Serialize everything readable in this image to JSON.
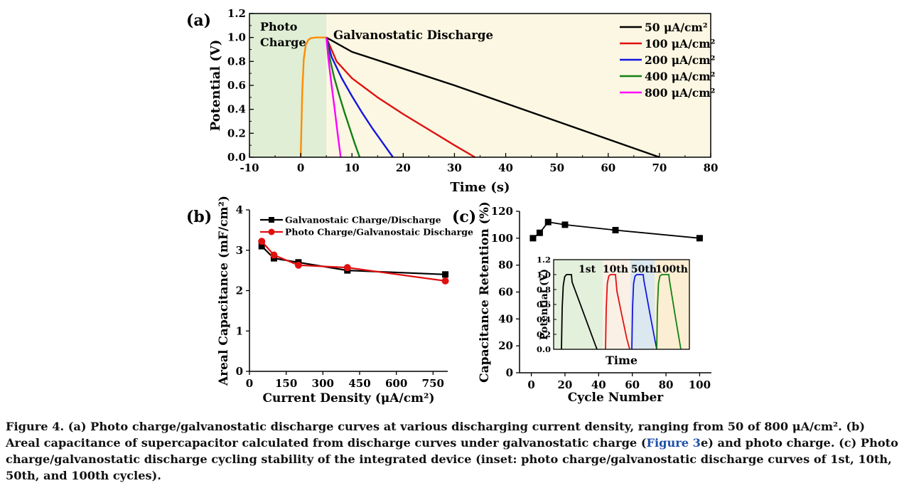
{
  "panel_labels": {
    "a": "(a)",
    "b": "(b)",
    "c": "(c)"
  },
  "chart_data": [
    {
      "panel": "a",
      "type": "line",
      "xlabel": "Time (s)",
      "ylabel": "Potential (V)",
      "xlim": [
        -10,
        80
      ],
      "ylim": [
        0,
        1.2
      ],
      "xticks": [
        -10,
        0,
        10,
        20,
        30,
        40,
        50,
        60,
        70,
        80
      ],
      "yticks": [
        0.0,
        0.2,
        0.4,
        0.6,
        0.8,
        1.0,
        1.2
      ],
      "regions": [
        {
          "label": "Photo\nCharge",
          "from": -10,
          "to": 5,
          "color": "#dfeed5"
        },
        {
          "label": "Galvanostatic Discharge",
          "from": 5,
          "to": 80,
          "color": "#fbf7e2"
        }
      ],
      "legend_position": "top-right",
      "charge_curve": {
        "color": "#ff8c00",
        "x": [
          0,
          0.3,
          0.6,
          1.0,
          1.5,
          2.0,
          3.0,
          4.0,
          5.0
        ],
        "y": [
          0,
          0.55,
          0.82,
          0.94,
          0.98,
          0.995,
          1.0,
          1.0,
          1.0
        ]
      },
      "series": [
        {
          "name": "50 μA/cm²",
          "color": "#000000",
          "x": [
            5,
            10,
            20,
            30,
            40,
            50,
            60,
            70
          ],
          "y": [
            1.0,
            0.88,
            0.74,
            0.6,
            0.45,
            0.3,
            0.15,
            0.0
          ]
        },
        {
          "name": "100 μA/cm²",
          "color": "#e01010",
          "x": [
            5,
            7,
            10,
            15,
            20,
            25,
            30,
            34
          ],
          "y": [
            1.0,
            0.8,
            0.66,
            0.5,
            0.36,
            0.23,
            0.1,
            0.0
          ]
        },
        {
          "name": "200 μA/cm²",
          "color": "#1515e0",
          "x": [
            5,
            6,
            8,
            10,
            12,
            14,
            16,
            18
          ],
          "y": [
            1.0,
            0.84,
            0.66,
            0.51,
            0.37,
            0.24,
            0.12,
            0.0
          ]
        },
        {
          "name": "400 μA/cm²",
          "color": "#128012",
          "x": [
            5,
            5.6,
            6.5,
            7.5,
            8.5,
            9.5,
            10.5,
            11.5
          ],
          "y": [
            1.0,
            0.84,
            0.67,
            0.52,
            0.38,
            0.25,
            0.12,
            0.0
          ]
        },
        {
          "name": "800 μA/cm²",
          "color": "#ff00ff",
          "x": [
            5,
            5.4,
            6.0,
            6.6,
            7.2,
            7.8
          ],
          "y": [
            1.0,
            0.82,
            0.61,
            0.41,
            0.2,
            0.0
          ]
        }
      ]
    },
    {
      "panel": "b",
      "type": "line",
      "xlabel": "Current Density (μA/cm²)",
      "ylabel": "Areal Capacitance (mF/cm²)",
      "xlim": [
        0,
        810
      ],
      "ylim": [
        0,
        4
      ],
      "xticks": [
        0,
        150,
        300,
        450,
        600,
        750
      ],
      "yticks": [
        0,
        1,
        2,
        3,
        4
      ],
      "legend_position": "top-right",
      "series": [
        {
          "name": "Galvanostaic Charge/Discharge",
          "color": "#000000",
          "marker": "square",
          "x": [
            50,
            100,
            200,
            400,
            800
          ],
          "y": [
            3.1,
            2.8,
            2.7,
            2.5,
            2.4
          ]
        },
        {
          "name": "Photo Charge/Galvanostaic Discharge",
          "color": "#e01010",
          "marker": "circle",
          "x": [
            50,
            100,
            200,
            400,
            800
          ],
          "y": [
            3.22,
            2.88,
            2.63,
            2.57,
            2.24
          ]
        }
      ]
    },
    {
      "panel": "c",
      "type": "line",
      "xlabel": "Cycle Number",
      "ylabel": "Capacitance Retention (%)",
      "xlim": [
        -7,
        107
      ],
      "ylim": [
        0,
        120
      ],
      "xticks": [
        0,
        20,
        40,
        60,
        80,
        100
      ],
      "yticks": [
        0,
        20,
        40,
        60,
        80,
        100,
        120
      ],
      "series": [
        {
          "color": "#000000",
          "marker": "square",
          "x": [
            1,
            5,
            10,
            20,
            50,
            100
          ],
          "y": [
            100,
            104,
            112,
            110,
            106,
            100
          ]
        }
      ],
      "inset": {
        "xlabel": "Time",
        "ylabel": "Potential (V)",
        "ylim": [
          0,
          1.2
        ],
        "yticks": [
          0.0,
          0.2,
          0.4,
          0.6,
          0.8,
          1.0,
          1.2
        ],
        "cycles": [
          {
            "label": "1st",
            "color": "#000000",
            "bg": "#e3f0db"
          },
          {
            "label": "10th",
            "color": "#e01010",
            "bg": "#fbf0e6"
          },
          {
            "label": "50th",
            "color": "#1515e0",
            "bg": "#dbe8ef"
          },
          {
            "label": "100th",
            "color": "#128012",
            "bg": "#fbeed2"
          }
        ]
      }
    }
  ],
  "caption": {
    "part1": "Figure 4. (a) Photo charge/galvanostatic discharge curves at various discharging current density, ranging from 50 of 800 μA/cm². (b) Areal capacitance of supercapacitor calculated from discharge curves under galvanostatic charge (",
    "ref": "Figure 3",
    "part2": "e) and photo charge. (c) Photo charge/galvanostatic discharge cycling stability of the integrated device (inset: photo charge/galvanostatic discharge curves of 1st, 10th, 50th, and 100th cycles)."
  }
}
